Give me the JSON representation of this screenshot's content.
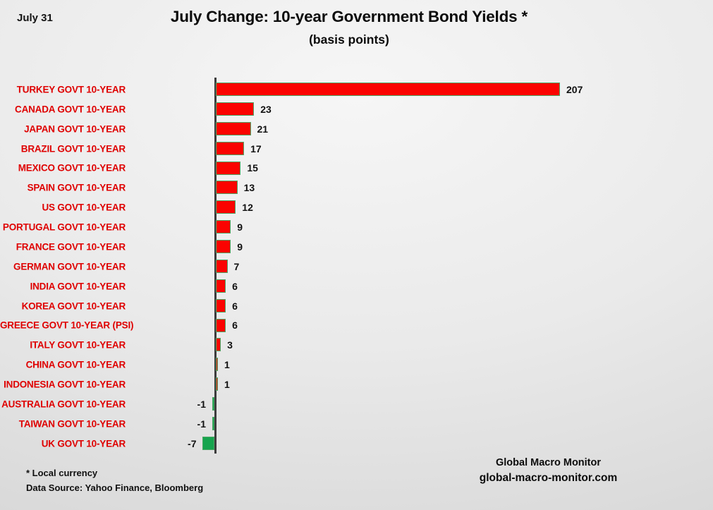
{
  "slide": {
    "date_label": "July 31",
    "title": "July Change: 10-year Government Bond Yields *",
    "subtitle": "(basis points)",
    "footnote_line1": "* Local currency",
    "footnote_line2": "Data Source:  Yahoo Finance, Bloomberg",
    "brand_line1": "Global Macro Monitor",
    "brand_line2": "global-macro-monitor.com"
  },
  "colors": {
    "positive_bar": "#fb0300",
    "negative_bar": "#16a44e",
    "bar_border": "#4ca765",
    "axis": "#3d3d3d",
    "category_label": "#df0101",
    "value_label": "#111111"
  },
  "chart_data": {
    "type": "bar",
    "orientation": "horizontal",
    "title": "July Change: 10-year Government Bond Yields *",
    "subtitle": "(basis points)",
    "unit": "basis points",
    "categories": [
      "TURKEY GOVT 10-YEAR",
      "CANADA GOVT 10-YEAR",
      "JAPAN GOVT 10-YEAR",
      "BRAZIL GOVT 10-YEAR",
      "MEXICO GOVT 10-YEAR",
      "SPAIN GOVT 10-YEAR",
      "US GOVT 10-YEAR",
      "PORTUGAL GOVT 10-YEAR",
      "FRANCE GOVT 10-YEAR",
      "GERMAN GOVT 10-YEAR",
      "INDIA GOVT 10-YEAR",
      "KOREA GOVT 10-YEAR",
      "GREECE GOVT 10-YEAR (PSI)",
      "ITALY GOVT 10-YEAR",
      "CHINA GOVT 10-YEAR",
      "INDONESIA GOVT 10-YEAR",
      "AUSTRALIA GOVT 10-YEAR",
      "TAIWAN GOVT 10-YEAR",
      "UK GOVT 10-YEAR"
    ],
    "values": [
      207,
      23,
      21,
      17,
      15,
      13,
      12,
      9,
      9,
      7,
      6,
      6,
      6,
      3,
      1,
      1,
      -1,
      -1,
      -7
    ],
    "xlim": [
      -20,
      215
    ],
    "grid": false,
    "legend": false,
    "data_labels": true
  }
}
